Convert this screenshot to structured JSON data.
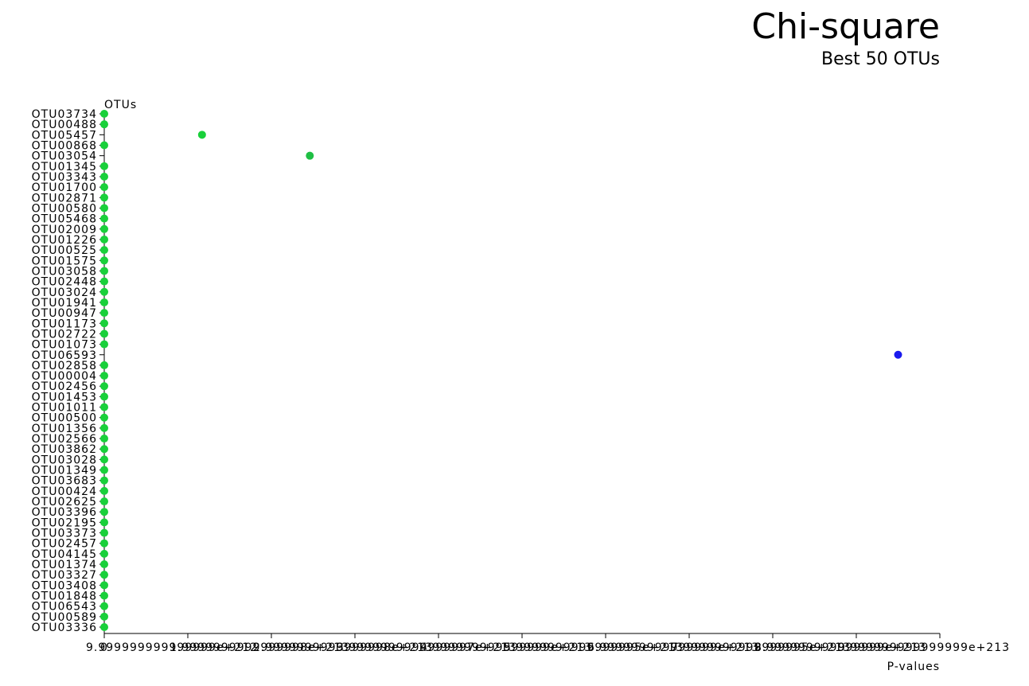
{
  "chart_data": {
    "type": "scatter",
    "title": "Chi-square",
    "subtitle": "Best 50 OTUs",
    "ylabel": "OTUs",
    "xlabel": "P-values",
    "x_ticks": [
      "0",
      "9.999999999999999e+212",
      "1.9999999999999998e+213",
      "2.9999999999999998e+213",
      "3.9999999999999997e+213",
      "4.999999999999999e+213",
      "5.9999999999999995e+213",
      "6.999999999999999e+213",
      "7.9999999999999995e+213",
      "8.999999999999999e+213",
      "9.999999999999999e+213"
    ],
    "xlim": [
      0,
      1e+214
    ],
    "categories": [
      "OTU03734",
      "OTU00488",
      "OTU05457",
      "OTU00868",
      "OTU03054",
      "OTU01345",
      "OTU03343",
      "OTU01700",
      "OTU02871",
      "OTU00580",
      "OTU05468",
      "OTU02009",
      "OTU01226",
      "OTU00525",
      "OTU01575",
      "OTU03058",
      "OTU02448",
      "OTU03024",
      "OTU01941",
      "OTU00947",
      "OTU01173",
      "OTU02722",
      "OTU01073",
      "OTU06593",
      "OTU02858",
      "OTU00004",
      "OTU02456",
      "OTU01453",
      "OTU01011",
      "OTU00500",
      "OTU01356",
      "OTU02566",
      "OTU03862",
      "OTU03028",
      "OTU01349",
      "OTU03683",
      "OTU00424",
      "OTU02625",
      "OTU03396",
      "OTU02195",
      "OTU03373",
      "OTU02457",
      "OTU04145",
      "OTU01374",
      "OTU03327",
      "OTU03408",
      "OTU01848",
      "OTU06543",
      "OTU00589",
      "OTU03336"
    ],
    "values": [
      0,
      0,
      1.17e+213,
      0,
      2.46e+213,
      0,
      0,
      0,
      0,
      0,
      0,
      0,
      0,
      0,
      0,
      0,
      0,
      0,
      0,
      0,
      0,
      0,
      0,
      9.5e+213,
      0,
      0,
      0,
      0,
      0,
      0,
      0,
      0,
      0,
      0,
      0,
      0,
      0,
      0,
      0,
      0,
      0,
      0,
      0,
      0,
      0,
      0,
      0,
      0,
      0,
      0
    ],
    "point_colors": [
      "#19d03a",
      "#19d03a",
      "#19d03a",
      "#19d03a",
      "#1fbf44",
      "#19d03a",
      "#19d03a",
      "#19d03a",
      "#19d03a",
      "#19d03a",
      "#19d03a",
      "#19d03a",
      "#19d03a",
      "#19d03a",
      "#19d03a",
      "#19d03a",
      "#19d03a",
      "#19d03a",
      "#19d03a",
      "#19d03a",
      "#19d03a",
      "#19d03a",
      "#19d03a",
      "#1a1aee",
      "#19d03a",
      "#19d03a",
      "#19d03a",
      "#19d03a",
      "#19d03a",
      "#19d03a",
      "#19d03a",
      "#19d03a",
      "#19d03a",
      "#19d03a",
      "#19d03a",
      "#19d03a",
      "#19d03a",
      "#19d03a",
      "#19d03a",
      "#19d03a",
      "#19d03a",
      "#19d03a",
      "#19d03a",
      "#19d03a",
      "#19d03a",
      "#19d03a",
      "#19d03a",
      "#19d03a",
      "#19d03a",
      "#19d03a"
    ],
    "grid": false
  }
}
